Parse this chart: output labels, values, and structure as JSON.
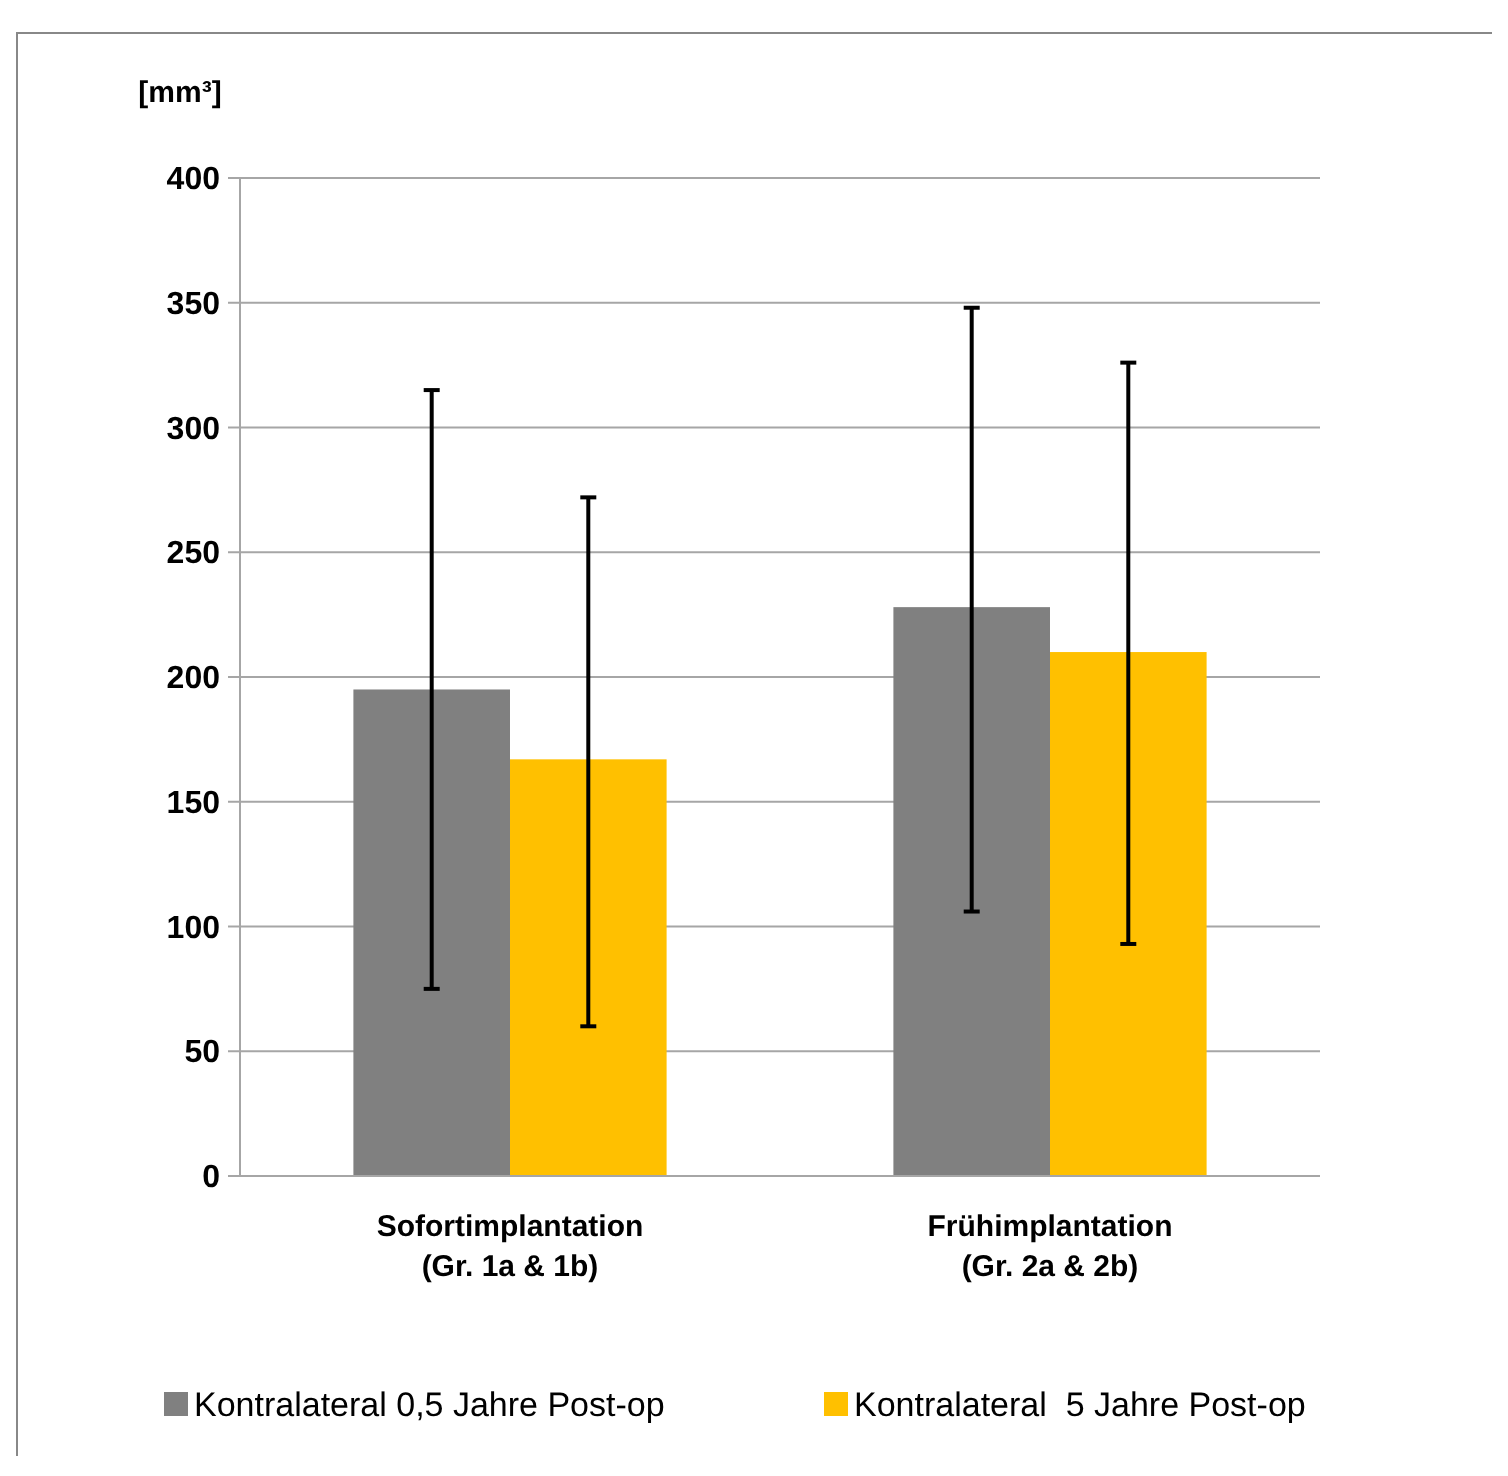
{
  "chart_data": {
    "type": "bar",
    "ylabel": "[mm³]",
    "categories": [
      "Sofortimplantation\n(Gr. 1a & 1b)",
      "Frühimplantation\n(Gr. 2a & 2b)"
    ],
    "series": [
      {
        "name": "Kontralateral 0,5 Jahre Post-op",
        "color": "#808080",
        "values": [
          195,
          228
        ],
        "errors": [
          [
            75,
            315
          ],
          [
            106,
            348
          ]
        ]
      },
      {
        "name": "Kontralateral  5 Jahre Post-op",
        "color": "#ffc000",
        "values": [
          167,
          210
        ],
        "errors": [
          [
            60,
            272
          ],
          [
            93,
            326
          ]
        ]
      }
    ],
    "ylim": [
      0,
      400
    ],
    "yticks": [
      0,
      50,
      100,
      150,
      200,
      250,
      300,
      350,
      400
    ],
    "grid": "y",
    "legend": "bottom"
  }
}
